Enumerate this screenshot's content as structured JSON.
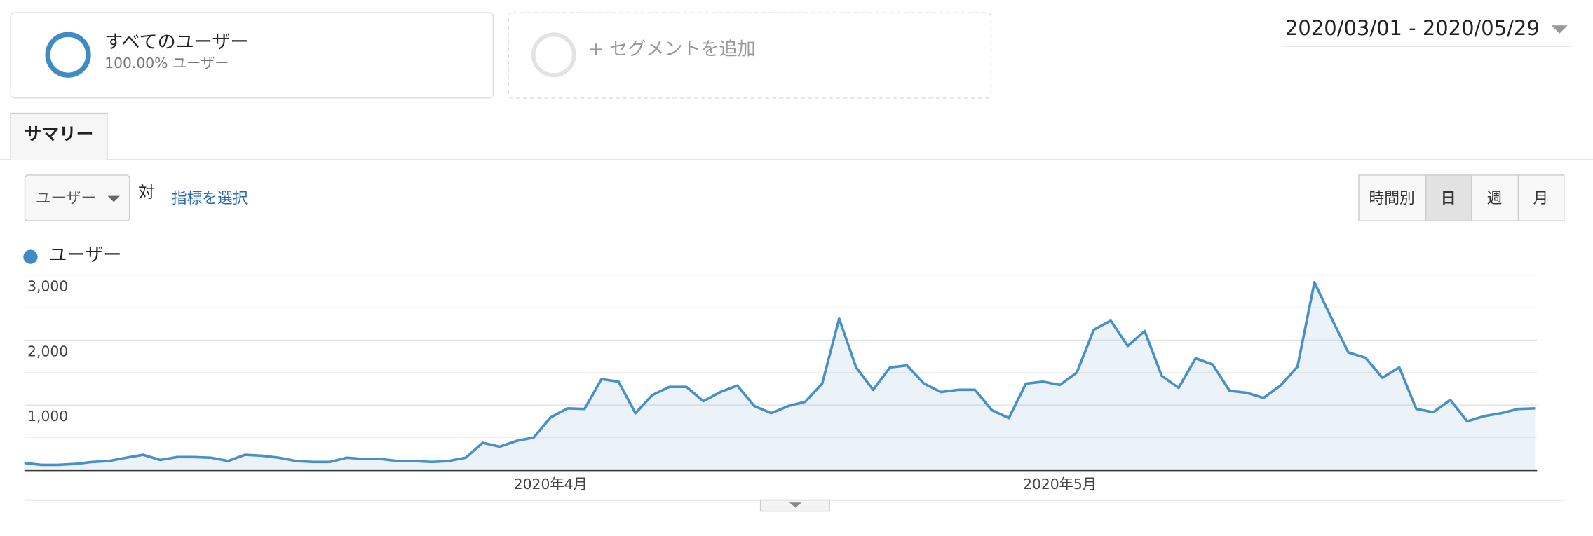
{
  "segments": [
    {
      "title": "すべてのユーザー",
      "subtitle": "100.00% ユーザー"
    },
    {
      "title": "+ セグメントを追加"
    }
  ],
  "date_range": "2020/03/01 - 2020/05/29",
  "tab": "サマリー",
  "metric_dropdown": "ユーザー",
  "versus": "対",
  "select_metric": "指標を選択",
  "granularity_buttons": [
    "時間別",
    "日",
    "週",
    "月"
  ],
  "chart_data": {
    "type": "area",
    "categories": [
      null,
      null,
      null,
      null,
      null,
      null,
      null,
      null,
      null,
      null,
      null,
      null,
      null,
      null,
      null,
      null,
      null,
      null,
      null,
      null,
      null,
      null,
      null,
      null,
      null,
      null,
      null,
      null,
      null,
      null,
      null,
      "2020年4月",
      null,
      null,
      null,
      null,
      null,
      null,
      null,
      null,
      null,
      null,
      null,
      null,
      null,
      null,
      null,
      null,
      null,
      null,
      null,
      null,
      null,
      null,
      null,
      null,
      null,
      null,
      null,
      null,
      null,
      "2020年5月",
      null,
      null,
      null,
      null,
      null,
      null,
      null,
      null,
      null,
      null,
      null,
      null,
      null,
      null,
      null,
      null,
      null,
      null,
      null,
      null,
      null,
      null,
      null,
      null,
      null,
      null,
      null,
      null
    ],
    "series": [
      {
        "name": "ユーザー",
        "color": "#4a90c8",
        "values": [
          110,
          80,
          80,
          95,
          125,
          140,
          190,
          235,
          155,
          200,
          200,
          190,
          140,
          235,
          220,
          190,
          140,
          125,
          125,
          190,
          170,
          170,
          140,
          140,
          125,
          140,
          190,
          420,
          360,
          450,
          500,
          810,
          950,
          940,
          1400,
          1360,
          875,
          1155,
          1280,
          1280,
          1060,
          1200,
          1300,
          985,
          875,
          985,
          1050,
          1330,
          2330,
          1580,
          1235,
          1580,
          1610,
          1330,
          1200,
          1235,
          1235,
          920,
          800,
          1330,
          1360,
          1310,
          1500,
          2160,
          2300,
          1910,
          2140,
          1450,
          1265,
          1720,
          1625,
          1220,
          1190,
          1110,
          1300,
          1590,
          2890,
          2340,
          1810,
          1730,
          1420,
          1580,
          940,
          890,
          1080,
          750,
          830,
          875,
          940,
          950
        ]
      }
    ],
    "ylim": [
      0,
      3000
    ],
    "yticks": [
      {
        "value": 1000,
        "label": "1,000"
      },
      {
        "value": 2000,
        "label": "2,000"
      },
      {
        "value": 3000,
        "label": "3,000"
      }
    ],
    "minor_yticks": [
      500,
      1500,
      2500
    ],
    "grid": true
  }
}
